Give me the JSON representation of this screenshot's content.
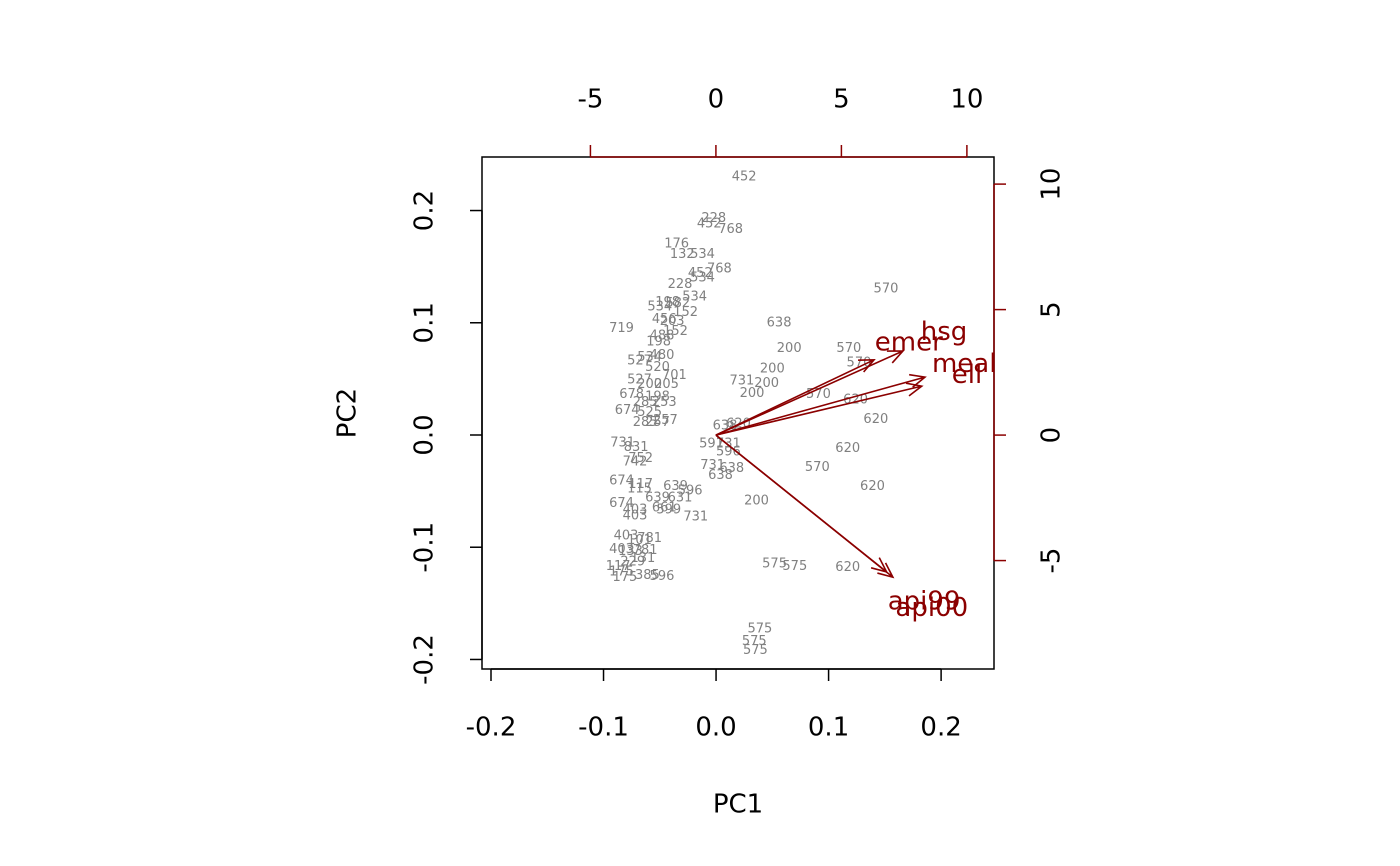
{
  "chart_data": {
    "type": "biplot",
    "xlabel": "PC1",
    "ylabel": "PC2",
    "xlim": [
      -0.208,
      0.247
    ],
    "ylim": [
      -0.2085,
      0.2477
    ],
    "xticks": [
      -0.2,
      -0.1,
      {
        "value": 0,
        "label": "0.0"
      },
      0.1,
      0.2
    ],
    "yticks": [
      -0.2,
      -0.1,
      {
        "value": 0,
        "label": "0.0"
      },
      0.1,
      0.2
    ],
    "x2lim": [
      -9.32,
      11.08
    ],
    "y2lim": [
      -9.32,
      11.08
    ],
    "x2ticks": [
      -5,
      0,
      5,
      10
    ],
    "y2ticks": [
      -5,
      0,
      5,
      10
    ],
    "points": {
      "color": "#808080",
      "labels": [
        "452",
        "228",
        "452",
        "768",
        "176",
        "132",
        "534",
        "768",
        "452",
        "534",
        "228",
        "534",
        "198",
        "582",
        "534",
        "152",
        "456",
        "203",
        "719",
        "488",
        "152",
        "198",
        "480",
        "534",
        "527",
        "520",
        "701",
        "527",
        "200",
        "205",
        "678",
        "198",
        "285",
        "253",
        "674",
        "525",
        "257",
        "285",
        "257",
        "731",
        "831",
        "752",
        "742",
        "674",
        "117",
        "115",
        "639",
        "596",
        "631",
        "639",
        "674",
        "403",
        "661",
        "599",
        "403",
        "731",
        "403",
        "781",
        "101",
        "403",
        "781",
        "133",
        "131",
        "229",
        "117",
        "175",
        "175",
        "385",
        "596",
        "570",
        "638",
        "200",
        "570",
        "570",
        "200",
        "731",
        "200",
        "200",
        "570",
        "620",
        "620",
        "638",
        "620",
        "591",
        "731",
        "596",
        "731",
        "638",
        "638",
        "620",
        "570",
        "620",
        "200",
        "575",
        "575",
        "620",
        "575",
        "575",
        "575"
      ],
      "x": [
        0.025,
        -0.002,
        -0.006,
        0.013,
        -0.035,
        -0.03,
        -0.012,
        0.003,
        -0.014,
        -0.012,
        -0.032,
        -0.019,
        -0.043,
        -0.034,
        -0.05,
        -0.027,
        -0.046,
        -0.039,
        -0.084,
        -0.048,
        -0.036,
        -0.051,
        -0.048,
        -0.059,
        -0.068,
        -0.052,
        -0.037,
        -0.068,
        -0.059,
        -0.044,
        -0.075,
        -0.052,
        -0.063,
        -0.046,
        -0.079,
        -0.059,
        -0.045,
        -0.063,
        -0.052,
        -0.083,
        -0.071,
        -0.067,
        -0.072,
        -0.084,
        -0.067,
        -0.068,
        -0.036,
        -0.023,
        -0.032,
        -0.052,
        -0.084,
        -0.072,
        -0.046,
        -0.042,
        -0.072,
        -0.018,
        -0.08,
        -0.059,
        -0.068,
        -0.084,
        -0.063,
        -0.076,
        -0.065,
        -0.074,
        -0.087,
        -0.084,
        -0.081,
        -0.061,
        -0.048,
        0.151,
        0.056,
        0.065,
        0.118,
        0.127,
        0.05,
        0.023,
        0.045,
        0.032,
        0.091,
        0.124,
        0.142,
        0.008,
        0.02,
        -0.004,
        0.011,
        0.011,
        -0.003,
        0.014,
        0.004,
        0.117,
        0.09,
        0.139,
        0.036,
        0.052,
        0.07,
        0.117,
        0.039,
        0.034,
        0.035
      ],
      "y": [
        0.23,
        0.193,
        0.188,
        0.183,
        0.17,
        0.161,
        0.161,
        0.148,
        0.144,
        0.14,
        0.134,
        0.123,
        0.118,
        0.117,
        0.114,
        0.109,
        0.103,
        0.101,
        0.095,
        0.088,
        0.092,
        0.083,
        0.071,
        0.069,
        0.066,
        0.06,
        0.053,
        0.049,
        0.045,
        0.045,
        0.036,
        0.034,
        0.029,
        0.029,
        0.022,
        0.02,
        0.013,
        0.011,
        0.011,
        -0.007,
        -0.011,
        -0.021,
        -0.024,
        -0.041,
        -0.044,
        -0.048,
        -0.046,
        -0.05,
        -0.056,
        -0.056,
        -0.061,
        -0.067,
        -0.065,
        -0.067,
        -0.072,
        -0.073,
        -0.09,
        -0.092,
        -0.094,
        -0.102,
        -0.103,
        -0.104,
        -0.11,
        -0.113,
        -0.117,
        -0.122,
        -0.127,
        -0.125,
        -0.126,
        0.13,
        0.1,
        0.077,
        0.077,
        0.064,
        0.059,
        0.048,
        0.046,
        0.037,
        0.036,
        0.031,
        0.014,
        0.008,
        0.01,
        -0.008,
        -0.008,
        -0.015,
        -0.027,
        -0.03,
        -0.036,
        -0.012,
        -0.029,
        -0.046,
        -0.059,
        -0.115,
        -0.117,
        -0.118,
        -0.173,
        -0.184,
        -0.192
      ]
    },
    "arrows": {
      "color": "#8b0000",
      "names": [
        "emer",
        "hsg",
        "meals",
        "ell",
        "api00",
        "api99"
      ],
      "x": [
        6.3,
        7.45,
        8.33,
        8.2,
        7.05,
        6.8
      ],
      "y": [
        3.0,
        3.35,
        2.31,
        1.95,
        -5.66,
        -5.45
      ]
    }
  }
}
